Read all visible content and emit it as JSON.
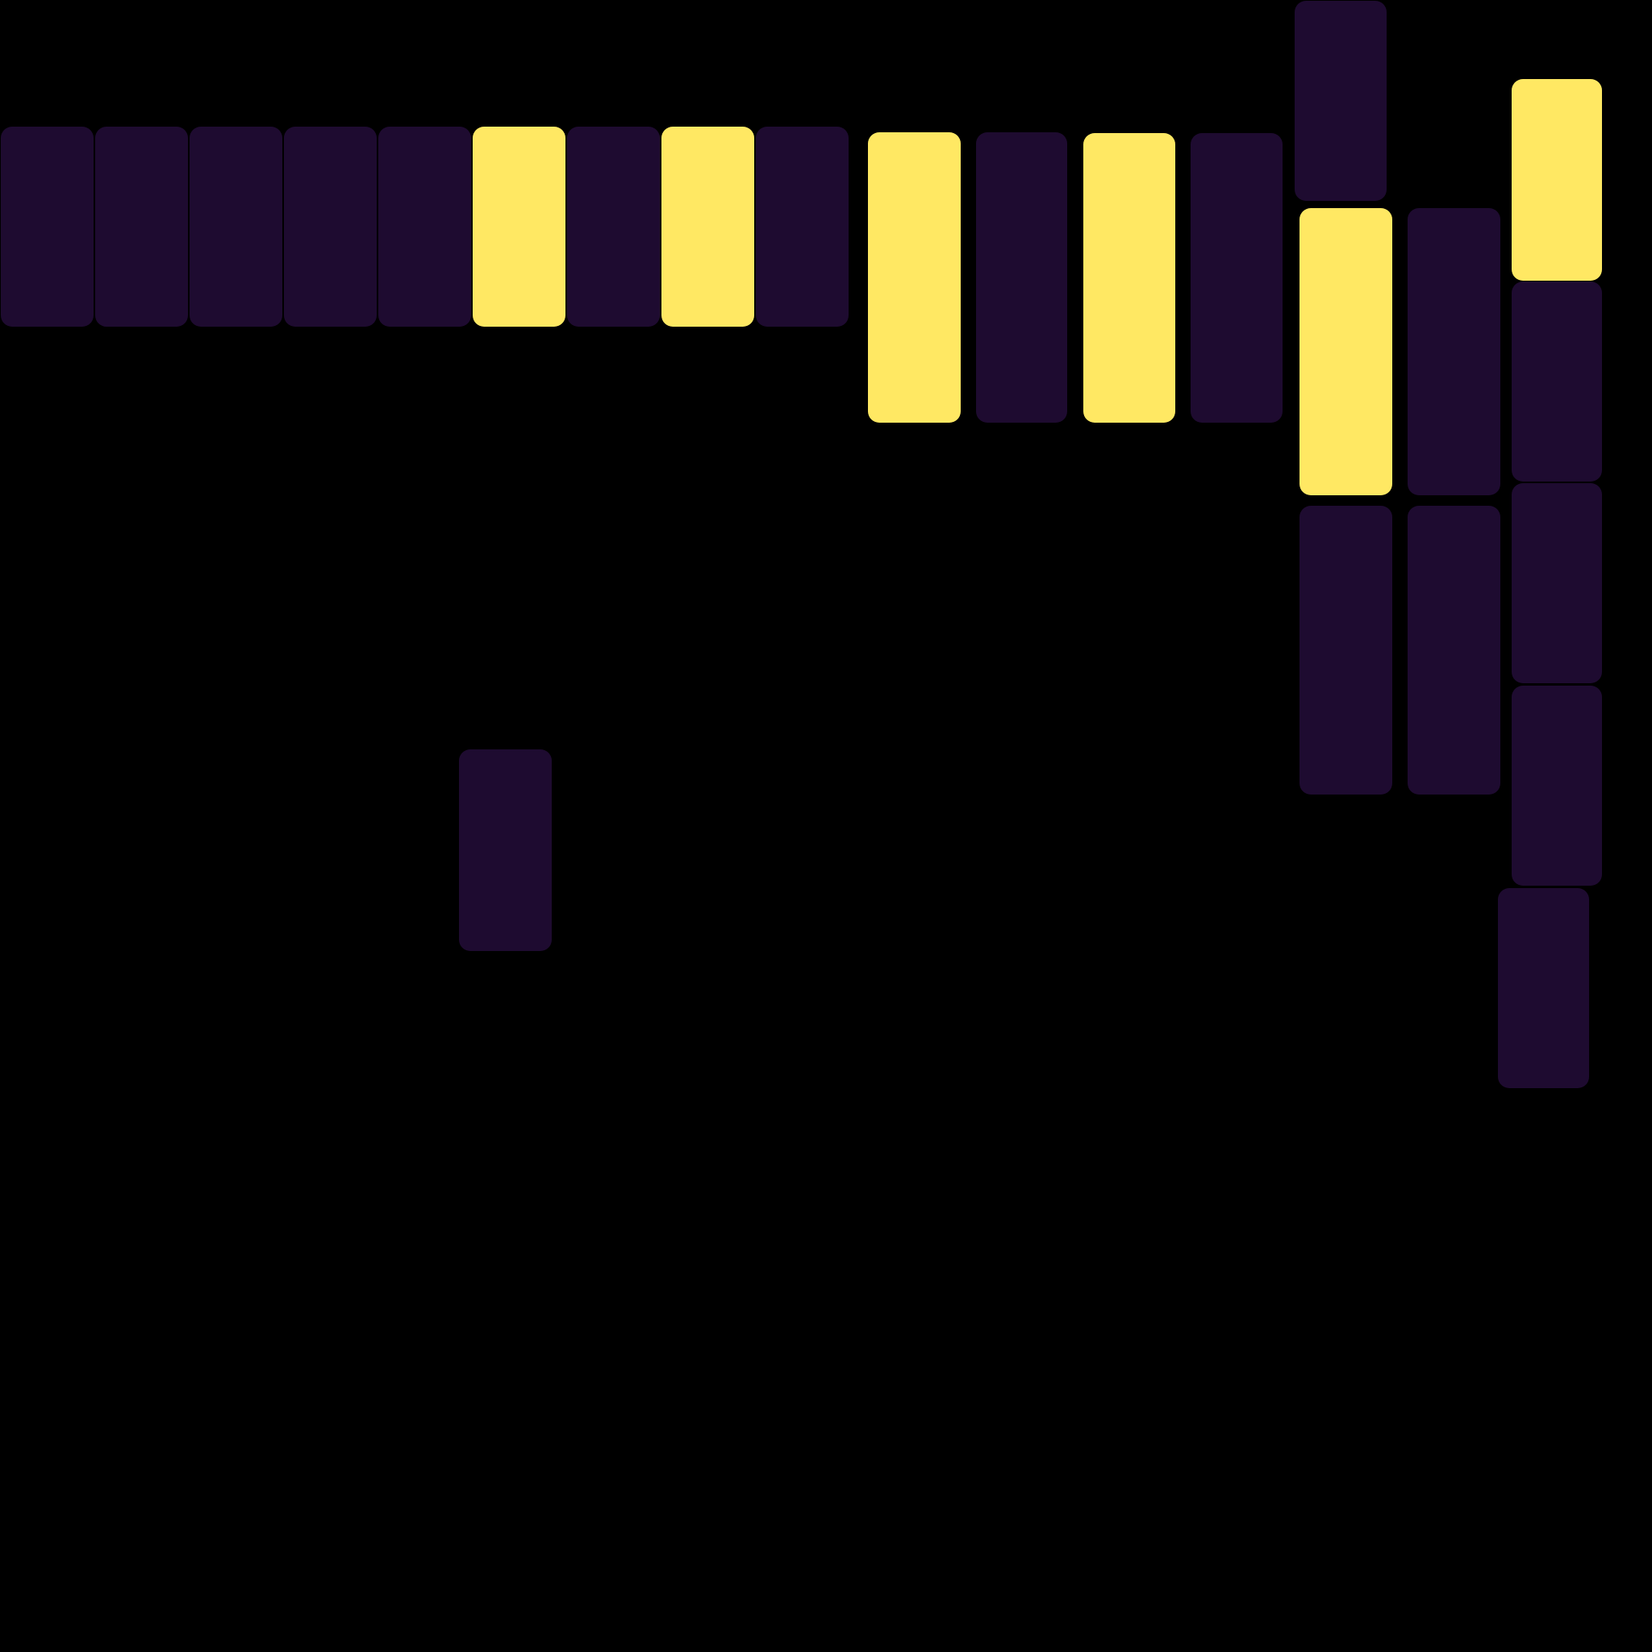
{
  "palette": {
    "background": "#000000",
    "dark_tile": "#1e0b30",
    "lit_tile": "#ffe863"
  },
  "tiles": [
    {
      "id": "t1",
      "state": "dark"
    },
    {
      "id": "t2",
      "state": "dark"
    },
    {
      "id": "t3",
      "state": "dark"
    },
    {
      "id": "t4",
      "state": "dark"
    },
    {
      "id": "t5",
      "state": "dark"
    },
    {
      "id": "t6",
      "state": "lit"
    },
    {
      "id": "t7",
      "state": "dark"
    },
    {
      "id": "t8",
      "state": "lit"
    },
    {
      "id": "t9",
      "state": "dark"
    },
    {
      "id": "t10",
      "state": "lit"
    },
    {
      "id": "t11",
      "state": "dark"
    },
    {
      "id": "t12",
      "state": "lit"
    },
    {
      "id": "t13",
      "state": "dark"
    },
    {
      "id": "t14",
      "state": "dark"
    },
    {
      "id": "t15",
      "state": "lit"
    },
    {
      "id": "t16",
      "state": "dark"
    },
    {
      "id": "t17",
      "state": "lit"
    },
    {
      "id": "t18",
      "state": "dark"
    },
    {
      "id": "t19",
      "state": "dark"
    },
    {
      "id": "t20",
      "state": "dark"
    },
    {
      "id": "t21",
      "state": "dark"
    },
    {
      "id": "t22",
      "state": "dark"
    },
    {
      "id": "t23",
      "state": "dark"
    },
    {
      "id": "t24",
      "state": "dark"
    }
  ]
}
